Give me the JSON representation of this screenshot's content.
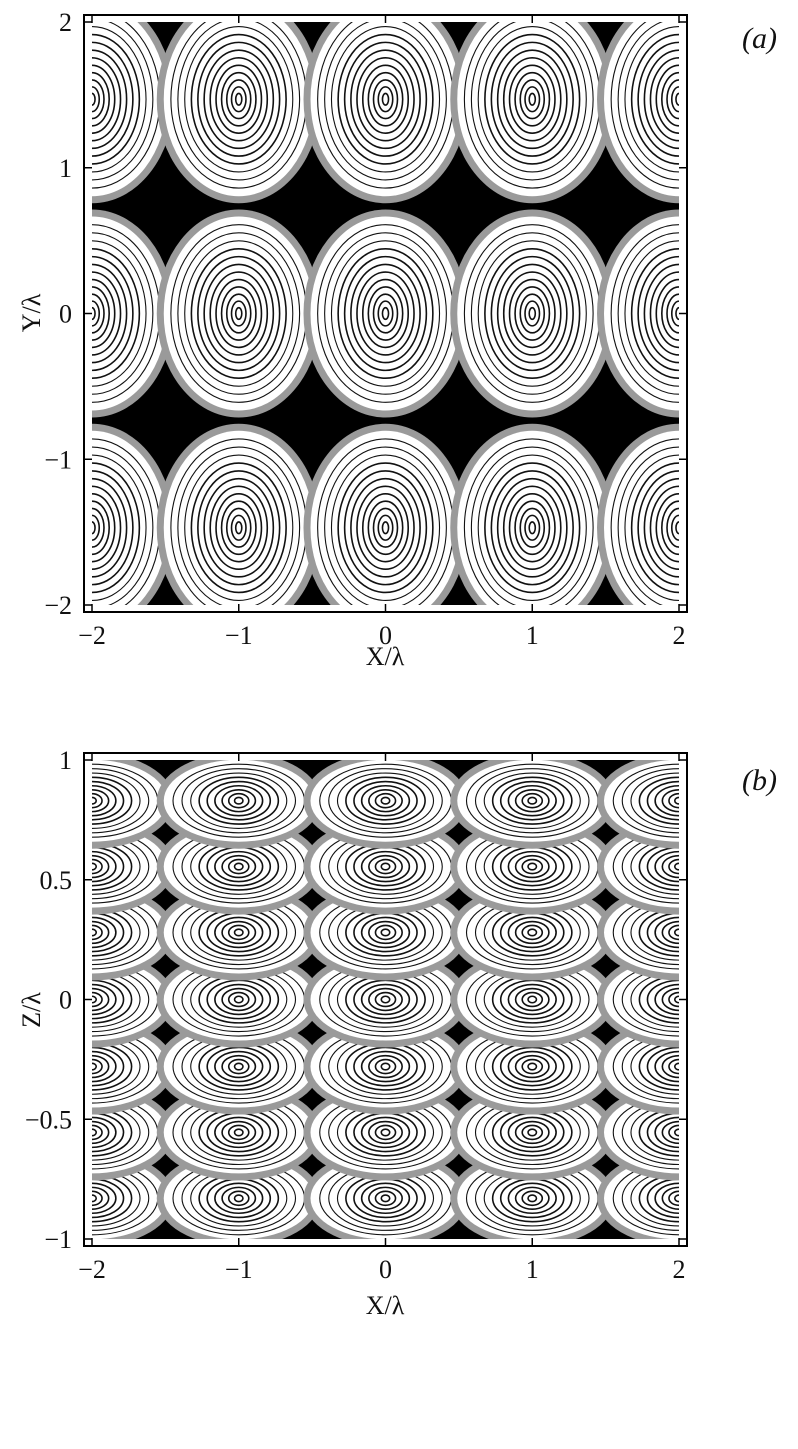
{
  "chart_data": [
    {
      "type": "contour",
      "panel_label": "(a)",
      "xlabel": "X/λ",
      "ylabel": "Y/λ",
      "xlim": [
        -2,
        2
      ],
      "ylim": [
        -2,
        2
      ],
      "xticks": [
        -2,
        -1,
        0,
        1,
        2
      ],
      "yticks": [
        -2,
        -1,
        0,
        1,
        2
      ],
      "xtick_labels": [
        "−2",
        "−1",
        "0",
        "1",
        "2"
      ],
      "ytick_labels": [
        "−2",
        "−1",
        "0",
        "1",
        "2"
      ],
      "maxima_x": [
        -2,
        -1,
        0,
        1,
        2
      ],
      "maxima_y": [
        -1.47,
        0,
        1.47
      ],
      "grid": false
    },
    {
      "type": "contour",
      "panel_label": "(b)",
      "xlabel": "X/λ",
      "ylabel": "Z/λ",
      "xlim": [
        -2,
        2
      ],
      "ylim": [
        -1,
        1
      ],
      "xticks": [
        -2,
        -1,
        0,
        1,
        2
      ],
      "yticks": [
        -1,
        -0.5,
        0,
        0.5,
        1
      ],
      "xtick_labels": [
        "−2",
        "−1",
        "0",
        "1",
        "2"
      ],
      "ytick_labels": [
        "−1",
        "−0.5",
        "0",
        "0.5",
        "1"
      ],
      "maxima_x": [
        -2,
        -1,
        0,
        1,
        2
      ],
      "maxima_z": [
        -0.83,
        -0.555,
        -0.28,
        0,
        0.28,
        0.555,
        0.83
      ],
      "grid": false
    }
  ]
}
